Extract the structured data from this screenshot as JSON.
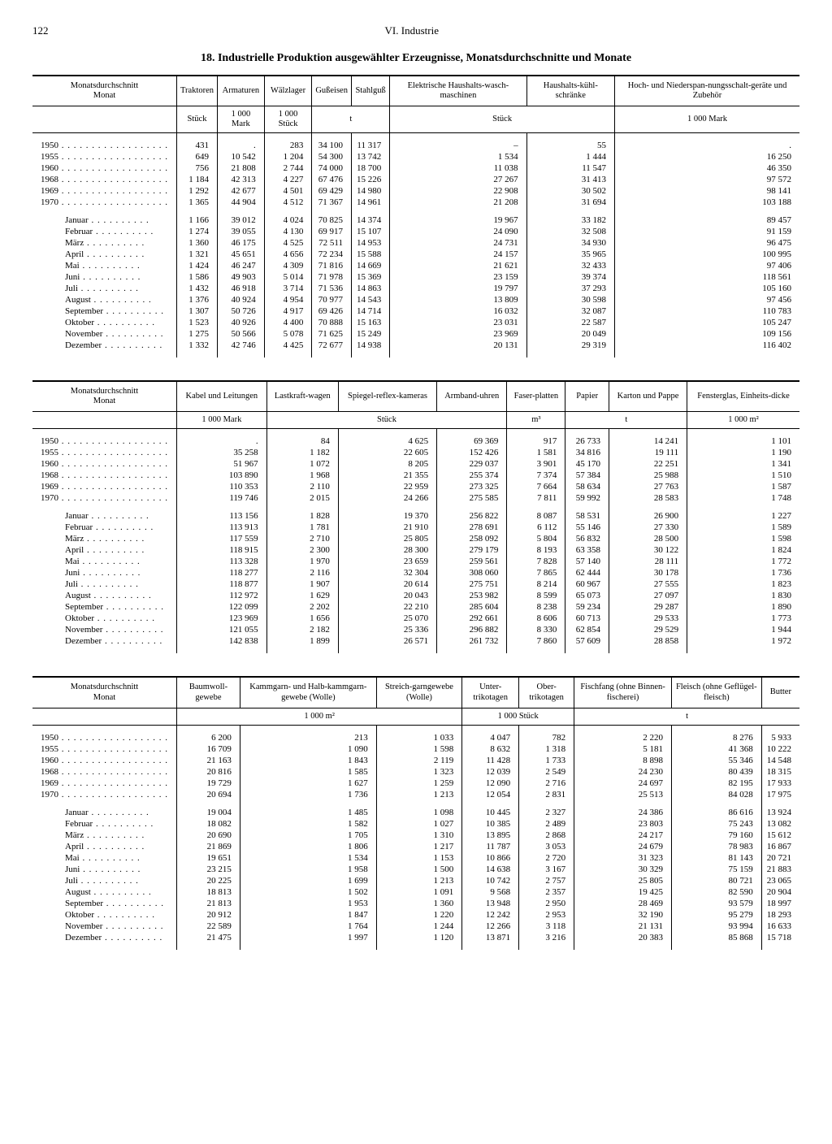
{
  "page_number": "122",
  "section": "VI. Industrie",
  "title": "18. Industrielle Produktion ausgewählter Erzeugnisse, Monatsdurchschnitte und Monate",
  "row_label_header": "Monatsdurchschnitt\nMonat",
  "year_labels": [
    "1950",
    "1955",
    "1960",
    "1968",
    "1969",
    "1970"
  ],
  "month_labels": [
    "Januar",
    "Februar",
    "März",
    "April",
    "Mai",
    "Juni",
    "Juli",
    "August",
    "September",
    "Oktober",
    "November",
    "Dezember"
  ],
  "tables": [
    {
      "columns": [
        {
          "h": "Traktoren",
          "u": "Stück"
        },
        {
          "h": "Armaturen",
          "u": "1 000 Mark"
        },
        {
          "h": "Wälzlager",
          "u": "1 000 Stück"
        },
        {
          "h": "Gußeisen",
          "u": "t"
        },
        {
          "h": "Stahlguß",
          "u": ""
        },
        {
          "h": "Elektrische Haushalts-wasch-maschinen",
          "u": "Stück"
        },
        {
          "h": "Haushalts-kühl-schränke",
          "u": ""
        },
        {
          "h": "Hoch- und Niederspan-nungsschalt-geräte und Zubehör",
          "u": "1 000 Mark"
        }
      ],
      "unit_spans": [
        1,
        1,
        1,
        2,
        0,
        2,
        0,
        1
      ],
      "years": [
        [
          "431",
          ".",
          "283",
          "34 100",
          "11 317",
          "–",
          "55",
          "."
        ],
        [
          "649",
          "10 542",
          "1 204",
          "54 300",
          "13 742",
          "1 534",
          "1 444",
          "16 250"
        ],
        [
          "756",
          "21 808",
          "2 744",
          "74 000",
          "18 700",
          "11 038",
          "11 547",
          "46 350"
        ],
        [
          "1 184",
          "42 313",
          "4 227",
          "67 476",
          "15 226",
          "27 267",
          "31 413",
          "97 572"
        ],
        [
          "1 292",
          "42 677",
          "4 501",
          "69 429",
          "14 980",
          "22 908",
          "30 502",
          "98 141"
        ],
        [
          "1 365",
          "44 904",
          "4 512",
          "71 367",
          "14 961",
          "21 208",
          "31 694",
          "103 188"
        ]
      ],
      "months": [
        [
          "1 166",
          "39 012",
          "4 024",
          "70 825",
          "14 374",
          "19 967",
          "33 182",
          "89 457"
        ],
        [
          "1 274",
          "39 055",
          "4 130",
          "69 917",
          "15 107",
          "24 090",
          "32 508",
          "91 159"
        ],
        [
          "1 360",
          "46 175",
          "4 525",
          "72 511",
          "14 953",
          "24 731",
          "34 930",
          "96 475"
        ],
        [
          "1 321",
          "45 651",
          "4 656",
          "72 234",
          "15 588",
          "24 157",
          "35 965",
          "100 995"
        ],
        [
          "1 424",
          "46 247",
          "4 309",
          "71 816",
          "14 669",
          "21 621",
          "32 433",
          "97 406"
        ],
        [
          "1 586",
          "49 903",
          "5 014",
          "71 978",
          "15 369",
          "23 159",
          "39 374",
          "118 561"
        ],
        [
          "1 432",
          "46 918",
          "3 714",
          "71 536",
          "14 863",
          "19 797",
          "37 293",
          "105 160"
        ],
        [
          "1 376",
          "40 924",
          "4 954",
          "70 977",
          "14 543",
          "13 809",
          "30 598",
          "97 456"
        ],
        [
          "1 307",
          "50 726",
          "4 917",
          "69 426",
          "14 714",
          "16 032",
          "32 087",
          "110 783"
        ],
        [
          "1 523",
          "40 926",
          "4 400",
          "70 888",
          "15 163",
          "23 031",
          "22 587",
          "105 247"
        ],
        [
          "1 275",
          "50 566",
          "5 078",
          "71 625",
          "15 249",
          "23 969",
          "20 049",
          "109 156"
        ],
        [
          "1 332",
          "42 746",
          "4 425",
          "72 677",
          "14 938",
          "20 131",
          "29 319",
          "116 402"
        ]
      ]
    },
    {
      "columns": [
        {
          "h": "Kabel und Leitungen",
          "u": "1 000 Mark"
        },
        {
          "h": "Lastkraft-wagen",
          "u": "Stück"
        },
        {
          "h": "Spiegel-reflex-kameras",
          "u": ""
        },
        {
          "h": "Armband-uhren",
          "u": ""
        },
        {
          "h": "Faser-platten",
          "u": "m³"
        },
        {
          "h": "Papier",
          "u": "t"
        },
        {
          "h": "Karton und Pappe",
          "u": ""
        },
        {
          "h": "Fensterglas, Einheits-dicke",
          "u": "1 000 m²"
        }
      ],
      "unit_spans": [
        1,
        3,
        0,
        0,
        1,
        2,
        0,
        1
      ],
      "years": [
        [
          ".",
          "84",
          "4 625",
          "69 369",
          "917",
          "26 733",
          "14 241",
          "1 101"
        ],
        [
          "35 258",
          "1 182",
          "22 605",
          "152 426",
          "1 581",
          "34 816",
          "19 111",
          "1 190"
        ],
        [
          "51 967",
          "1 072",
          "8 205",
          "229 037",
          "3 901",
          "45 170",
          "22 251",
          "1 341"
        ],
        [
          "103 890",
          "1 968",
          "21 355",
          "255 374",
          "7 374",
          "57 384",
          "25 988",
          "1 510"
        ],
        [
          "110 353",
          "2 110",
          "22 959",
          "273 325",
          "7 664",
          "58 634",
          "27 763",
          "1 587"
        ],
        [
          "119 746",
          "2 015",
          "24 266",
          "275 585",
          "7 811",
          "59 992",
          "28 583",
          "1 748"
        ]
      ],
      "months": [
        [
          "113 156",
          "1 828",
          "19 370",
          "256 822",
          "8 087",
          "58 531",
          "26 900",
          "1 227"
        ],
        [
          "113 913",
          "1 781",
          "21 910",
          "278 691",
          "6 112",
          "55 146",
          "27 330",
          "1 589"
        ],
        [
          "117 559",
          "2 710",
          "25 805",
          "258 092",
          "5 804",
          "56 832",
          "28 500",
          "1 598"
        ],
        [
          "118 915",
          "2 300",
          "28 300",
          "279 179",
          "8 193",
          "63 358",
          "30 122",
          "1 824"
        ],
        [
          "113 328",
          "1 970",
          "23 659",
          "259 561",
          "7 828",
          "57 140",
          "28 111",
          "1 772"
        ],
        [
          "118 277",
          "2 116",
          "32 304",
          "308 060",
          "7 865",
          "62 444",
          "30 178",
          "1 736"
        ],
        [
          "118 877",
          "1 907",
          "20 614",
          "275 751",
          "8 214",
          "60 967",
          "27 555",
          "1 823"
        ],
        [
          "112 972",
          "1 629",
          "20 043",
          "253 982",
          "8 599",
          "65 073",
          "27 097",
          "1 830"
        ],
        [
          "122 099",
          "2 202",
          "22 210",
          "285 604",
          "8 238",
          "59 234",
          "29 287",
          "1 890"
        ],
        [
          "123 969",
          "1 656",
          "25 070",
          "292 661",
          "8 606",
          "60 713",
          "29 533",
          "1 773"
        ],
        [
          "121 055",
          "2 182",
          "25 336",
          "296 882",
          "8 330",
          "62 854",
          "29 529",
          "1 944"
        ],
        [
          "142 838",
          "1 899",
          "26 571",
          "261 732",
          "7 860",
          "57 609",
          "28 858",
          "1 972"
        ]
      ]
    },
    {
      "columns": [
        {
          "h": "Baumwoll-gewebe",
          "u": "1 000 m²"
        },
        {
          "h": "Kammgarn- und Halb-kammgarn-gewebe (Wolle)",
          "u": ""
        },
        {
          "h": "Streich-garngewebe (Wolle)",
          "u": ""
        },
        {
          "h": "Unter-trikotagen",
          "u": "1 000 Stück"
        },
        {
          "h": "Ober-trikotagen",
          "u": ""
        },
        {
          "h": "Fischfang (ohne Binnen-fischerei)",
          "u": "t"
        },
        {
          "h": "Fleisch (ohne Geflügel-fleisch)",
          "u": ""
        },
        {
          "h": "Butter",
          "u": ""
        }
      ],
      "unit_spans": [
        3,
        0,
        0,
        2,
        0,
        3,
        0,
        0
      ],
      "years": [
        [
          "6 200",
          "213",
          "1 033",
          "4 047",
          "782",
          "2 220",
          "8 276",
          "5 933"
        ],
        [
          "16 709",
          "1 090",
          "1 598",
          "8 632",
          "1 318",
          "5 181",
          "41 368",
          "10 222"
        ],
        [
          "21 163",
          "1 843",
          "2 119",
          "11 428",
          "1 733",
          "8 898",
          "55 346",
          "14 548"
        ],
        [
          "20 816",
          "1 585",
          "1 323",
          "12 039",
          "2 549",
          "24 230",
          "80 439",
          "18 315"
        ],
        [
          "19 729",
          "1 627",
          "1 259",
          "12 090",
          "2 716",
          "24 697",
          "82 195",
          "17 933"
        ],
        [
          "20 694",
          "1 736",
          "1 213",
          "12 054",
          "2 831",
          "25 513",
          "84 028",
          "17 975"
        ]
      ],
      "months": [
        [
          "19 004",
          "1 485",
          "1 098",
          "10 445",
          "2 327",
          "24 386",
          "86 616",
          "13 924"
        ],
        [
          "18 082",
          "1 582",
          "1 027",
          "10 385",
          "2 489",
          "23 803",
          "75 243",
          "13 082"
        ],
        [
          "20 690",
          "1 705",
          "1 310",
          "13 895",
          "2 868",
          "24 217",
          "79 160",
          "15 612"
        ],
        [
          "21 869",
          "1 806",
          "1 217",
          "11 787",
          "3 053",
          "24 679",
          "78 983",
          "16 867"
        ],
        [
          "19 651",
          "1 534",
          "1 153",
          "10 866",
          "2 720",
          "31 323",
          "81 143",
          "20 721"
        ],
        [
          "23 215",
          "1 958",
          "1 500",
          "14 638",
          "3 167",
          "30 329",
          "75 159",
          "21 883"
        ],
        [
          "20 225",
          "1 699",
          "1 213",
          "10 742",
          "2 757",
          "25 805",
          "80 721",
          "23 065"
        ],
        [
          "18 813",
          "1 502",
          "1 091",
          "9 568",
          "2 357",
          "19 425",
          "82 590",
          "20 904"
        ],
        [
          "21 813",
          "1 953",
          "1 360",
          "13 948",
          "2 950",
          "28 469",
          "93 579",
          "18 997"
        ],
        [
          "20 912",
          "1 847",
          "1 220",
          "12 242",
          "2 953",
          "32 190",
          "95 279",
          "18 293"
        ],
        [
          "22 589",
          "1 764",
          "1 244",
          "12 266",
          "3 118",
          "21 131",
          "93 994",
          "16 633"
        ],
        [
          "21 475",
          "1 997",
          "1 120",
          "13 871",
          "3 216",
          "20 383",
          "85 868",
          "15 718"
        ]
      ]
    }
  ]
}
